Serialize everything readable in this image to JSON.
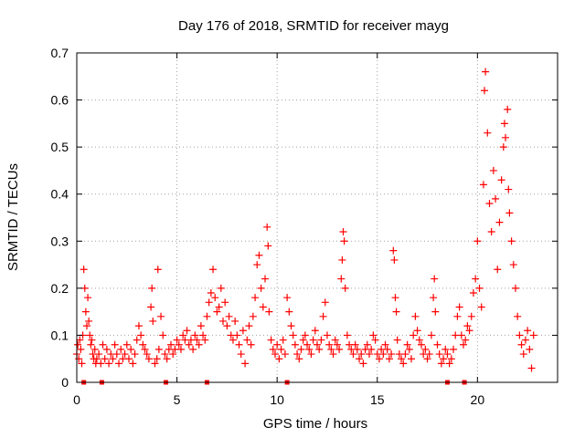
{
  "chart_data": {
    "type": "scatter",
    "title": "Day 176 of 2018, SRMTID for receiver mayg",
    "xlabel": "GPS time / hours",
    "ylabel": "SRMTID / TECUs",
    "xlim": [
      0,
      24
    ],
    "ylim": [
      0,
      0.7
    ],
    "xticks": [
      0,
      5,
      10,
      15,
      20
    ],
    "xtick_labels": [
      "0",
      "5",
      "10",
      "15",
      "20"
    ],
    "yticks": [
      0,
      0.1,
      0.2,
      0.3,
      0.4,
      0.5,
      0.6,
      0.7
    ],
    "ytick_labels": [
      "0",
      "0.1",
      "0.2",
      "0.3",
      "0.4",
      "0.5",
      "0.6",
      "0.7"
    ],
    "grid": true,
    "marker": "+",
    "color": "#ff0000",
    "series": [
      {
        "name": "SRMTID",
        "points": [
          [
            0.0,
            0.06
          ],
          [
            0.05,
            0.08
          ],
          [
            0.1,
            0.05
          ],
          [
            0.15,
            0.09
          ],
          [
            0.2,
            0.07
          ],
          [
            0.25,
            0.04
          ],
          [
            0.3,
            0.1
          ],
          [
            0.35,
            0.24
          ],
          [
            0.4,
            0.2
          ],
          [
            0.45,
            0.15
          ],
          [
            0.5,
            0.12
          ],
          [
            0.55,
            0.18
          ],
          [
            0.6,
            0.13
          ],
          [
            0.65,
            0.1
          ],
          [
            0.7,
            0.08
          ],
          [
            0.75,
            0.09
          ],
          [
            0.8,
            0.06
          ],
          [
            0.85,
            0.05
          ],
          [
            0.9,
            0.07
          ],
          [
            0.95,
            0.04
          ],
          [
            1.0,
            0.05
          ],
          [
            1.1,
            0.06
          ],
          [
            1.2,
            0.04
          ],
          [
            1.3,
            0.08
          ],
          [
            1.4,
            0.05
          ],
          [
            1.5,
            0.07
          ],
          [
            1.6,
            0.04
          ],
          [
            1.7,
            0.06
          ],
          [
            1.8,
            0.05
          ],
          [
            1.9,
            0.08
          ],
          [
            2.0,
            0.06
          ],
          [
            2.1,
            0.04
          ],
          [
            2.2,
            0.07
          ],
          [
            2.3,
            0.05
          ],
          [
            2.4,
            0.06
          ],
          [
            2.5,
            0.08
          ],
          [
            2.6,
            0.05
          ],
          [
            2.7,
            0.07
          ],
          [
            2.8,
            0.04
          ],
          [
            2.9,
            0.06
          ],
          [
            3.0,
            0.09
          ],
          [
            3.1,
            0.12
          ],
          [
            3.2,
            0.1
          ],
          [
            3.3,
            0.08
          ],
          [
            3.4,
            0.07
          ],
          [
            3.5,
            0.06
          ],
          [
            3.6,
            0.05
          ],
          [
            3.7,
            0.16
          ],
          [
            3.75,
            0.2
          ],
          [
            3.8,
            0.13
          ],
          [
            3.9,
            0.04
          ],
          [
            4.0,
            0.05
          ],
          [
            4.05,
            0.24
          ],
          [
            4.1,
            0.07
          ],
          [
            4.2,
            0.14
          ],
          [
            4.3,
            0.1
          ],
          [
            4.4,
            0.06
          ],
          [
            4.5,
            0.05
          ],
          [
            4.6,
            0.07
          ],
          [
            4.7,
            0.08
          ],
          [
            4.8,
            0.06
          ],
          [
            4.9,
            0.07
          ],
          [
            5.0,
            0.09
          ],
          [
            5.1,
            0.08
          ],
          [
            5.2,
            0.07
          ],
          [
            5.3,
            0.1
          ],
          [
            5.4,
            0.09
          ],
          [
            5.5,
            0.11
          ],
          [
            5.6,
            0.08
          ],
          [
            5.7,
            0.09
          ],
          [
            5.8,
            0.07
          ],
          [
            5.9,
            0.1
          ],
          [
            6.0,
            0.09
          ],
          [
            6.1,
            0.08
          ],
          [
            6.2,
            0.12
          ],
          [
            6.3,
            0.1
          ],
          [
            6.4,
            0.09
          ],
          [
            6.5,
            0.14
          ],
          [
            6.6,
            0.17
          ],
          [
            6.7,
            0.19
          ],
          [
            6.8,
            0.24
          ],
          [
            6.9,
            0.18
          ],
          [
            7.0,
            0.15
          ],
          [
            7.1,
            0.16
          ],
          [
            7.2,
            0.2
          ],
          [
            7.3,
            0.13
          ],
          [
            7.4,
            0.17
          ],
          [
            7.5,
            0.12
          ],
          [
            7.6,
            0.14
          ],
          [
            7.7,
            0.1
          ],
          [
            7.8,
            0.09
          ],
          [
            7.9,
            0.13
          ],
          [
            8.0,
            0.1
          ],
          [
            8.1,
            0.08
          ],
          [
            8.2,
            0.06
          ],
          [
            8.3,
            0.11
          ],
          [
            8.4,
            0.04
          ],
          [
            8.5,
            0.09
          ],
          [
            8.6,
            0.12
          ],
          [
            8.7,
            0.08
          ],
          [
            8.8,
            0.14
          ],
          [
            8.9,
            0.18
          ],
          [
            9.0,
            0.25
          ],
          [
            9.1,
            0.27
          ],
          [
            9.2,
            0.2
          ],
          [
            9.3,
            0.16
          ],
          [
            9.4,
            0.22
          ],
          [
            9.5,
            0.33
          ],
          [
            9.55,
            0.29
          ],
          [
            9.6,
            0.15
          ],
          [
            9.7,
            0.09
          ],
          [
            9.8,
            0.07
          ],
          [
            9.9,
            0.06
          ],
          [
            10.0,
            0.08
          ],
          [
            10.1,
            0.05
          ],
          [
            10.2,
            0.07
          ],
          [
            10.3,
            0.09
          ],
          [
            10.4,
            0.06
          ],
          [
            10.5,
            0.18
          ],
          [
            10.6,
            0.15
          ],
          [
            10.7,
            0.12
          ],
          [
            10.8,
            0.1
          ],
          [
            10.9,
            0.08
          ],
          [
            11.0,
            0.06
          ],
          [
            11.1,
            0.05
          ],
          [
            11.2,
            0.07
          ],
          [
            11.3,
            0.09
          ],
          [
            11.4,
            0.1
          ],
          [
            11.5,
            0.08
          ],
          [
            11.6,
            0.07
          ],
          [
            11.7,
            0.06
          ],
          [
            11.8,
            0.09
          ],
          [
            11.9,
            0.11
          ],
          [
            12.0,
            0.08
          ],
          [
            12.1,
            0.07
          ],
          [
            12.2,
            0.09
          ],
          [
            12.3,
            0.14
          ],
          [
            12.4,
            0.17
          ],
          [
            12.5,
            0.1
          ],
          [
            12.6,
            0.08
          ],
          [
            12.7,
            0.07
          ],
          [
            12.8,
            0.06
          ],
          [
            12.9,
            0.09
          ],
          [
            13.0,
            0.08
          ],
          [
            13.1,
            0.07
          ],
          [
            13.2,
            0.22
          ],
          [
            13.25,
            0.26
          ],
          [
            13.3,
            0.32
          ],
          [
            13.35,
            0.3
          ],
          [
            13.4,
            0.2
          ],
          [
            13.5,
            0.1
          ],
          [
            13.6,
            0.08
          ],
          [
            13.7,
            0.07
          ],
          [
            13.8,
            0.06
          ],
          [
            13.9,
            0.08
          ],
          [
            14.0,
            0.07
          ],
          [
            14.1,
            0.05
          ],
          [
            14.2,
            0.06
          ],
          [
            14.3,
            0.04
          ],
          [
            14.4,
            0.07
          ],
          [
            14.5,
            0.08
          ],
          [
            14.6,
            0.06
          ],
          [
            14.7,
            0.07
          ],
          [
            14.8,
            0.1
          ],
          [
            14.9,
            0.09
          ],
          [
            15.0,
            0.06
          ],
          [
            15.1,
            0.05
          ],
          [
            15.2,
            0.07
          ],
          [
            15.3,
            0.06
          ],
          [
            15.4,
            0.08
          ],
          [
            15.5,
            0.07
          ],
          [
            15.6,
            0.05
          ],
          [
            15.7,
            0.06
          ],
          [
            15.8,
            0.28
          ],
          [
            15.85,
            0.26
          ],
          [
            15.9,
            0.18
          ],
          [
            15.95,
            0.15
          ],
          [
            16.0,
            0.09
          ],
          [
            16.1,
            0.06
          ],
          [
            16.2,
            0.05
          ],
          [
            16.3,
            0.04
          ],
          [
            16.4,
            0.06
          ],
          [
            16.5,
            0.08
          ],
          [
            16.6,
            0.07
          ],
          [
            16.7,
            0.05
          ],
          [
            16.8,
            0.1
          ],
          [
            16.9,
            0.14
          ],
          [
            17.0,
            0.11
          ],
          [
            17.1,
            0.09
          ],
          [
            17.2,
            0.08
          ],
          [
            17.3,
            0.06
          ],
          [
            17.4,
            0.07
          ],
          [
            17.5,
            0.05
          ],
          [
            17.6,
            0.06
          ],
          [
            17.7,
            0.1
          ],
          [
            17.8,
            0.18
          ],
          [
            17.85,
            0.22
          ],
          [
            17.9,
            0.15
          ],
          [
            18.0,
            0.08
          ],
          [
            18.1,
            0.06
          ],
          [
            18.2,
            0.04
          ],
          [
            18.3,
            0.05
          ],
          [
            18.4,
            0.07
          ],
          [
            18.5,
            0.06
          ],
          [
            18.6,
            0.04
          ],
          [
            18.7,
            0.05
          ],
          [
            18.8,
            0.07
          ],
          [
            18.9,
            0.1
          ],
          [
            19.0,
            0.14
          ],
          [
            19.1,
            0.16
          ],
          [
            19.2,
            0.1
          ],
          [
            19.3,
            0.08
          ],
          [
            19.4,
            0.09
          ],
          [
            19.5,
            0.12
          ],
          [
            19.6,
            0.11
          ],
          [
            19.7,
            0.14
          ],
          [
            19.8,
            0.19
          ],
          [
            19.9,
            0.22
          ],
          [
            20.0,
            0.3
          ],
          [
            20.1,
            0.2
          ],
          [
            20.2,
            0.16
          ],
          [
            20.3,
            0.42
          ],
          [
            20.35,
            0.62
          ],
          [
            20.4,
            0.66
          ],
          [
            20.5,
            0.53
          ],
          [
            20.6,
            0.38
          ],
          [
            20.7,
            0.32
          ],
          [
            20.8,
            0.45
          ],
          [
            20.9,
            0.39
          ],
          [
            21.0,
            0.24
          ],
          [
            21.1,
            0.34
          ],
          [
            21.2,
            0.43
          ],
          [
            21.3,
            0.5
          ],
          [
            21.35,
            0.55
          ],
          [
            21.4,
            0.52
          ],
          [
            21.5,
            0.58
          ],
          [
            21.55,
            0.41
          ],
          [
            21.6,
            0.36
          ],
          [
            21.7,
            0.3
          ],
          [
            21.8,
            0.25
          ],
          [
            21.9,
            0.2
          ],
          [
            22.0,
            0.14
          ],
          [
            22.1,
            0.1
          ],
          [
            22.2,
            0.08
          ],
          [
            22.3,
            0.06
          ],
          [
            22.4,
            0.09
          ],
          [
            22.5,
            0.11
          ],
          [
            22.6,
            0.07
          ],
          [
            22.7,
            0.03
          ],
          [
            22.8,
            0.1
          ]
        ]
      }
    ],
    "bottom_markers": {
      "y": 0,
      "x": [
        0.35,
        1.25,
        4.45,
        6.5,
        10.5,
        18.5,
        19.35
      ]
    }
  }
}
